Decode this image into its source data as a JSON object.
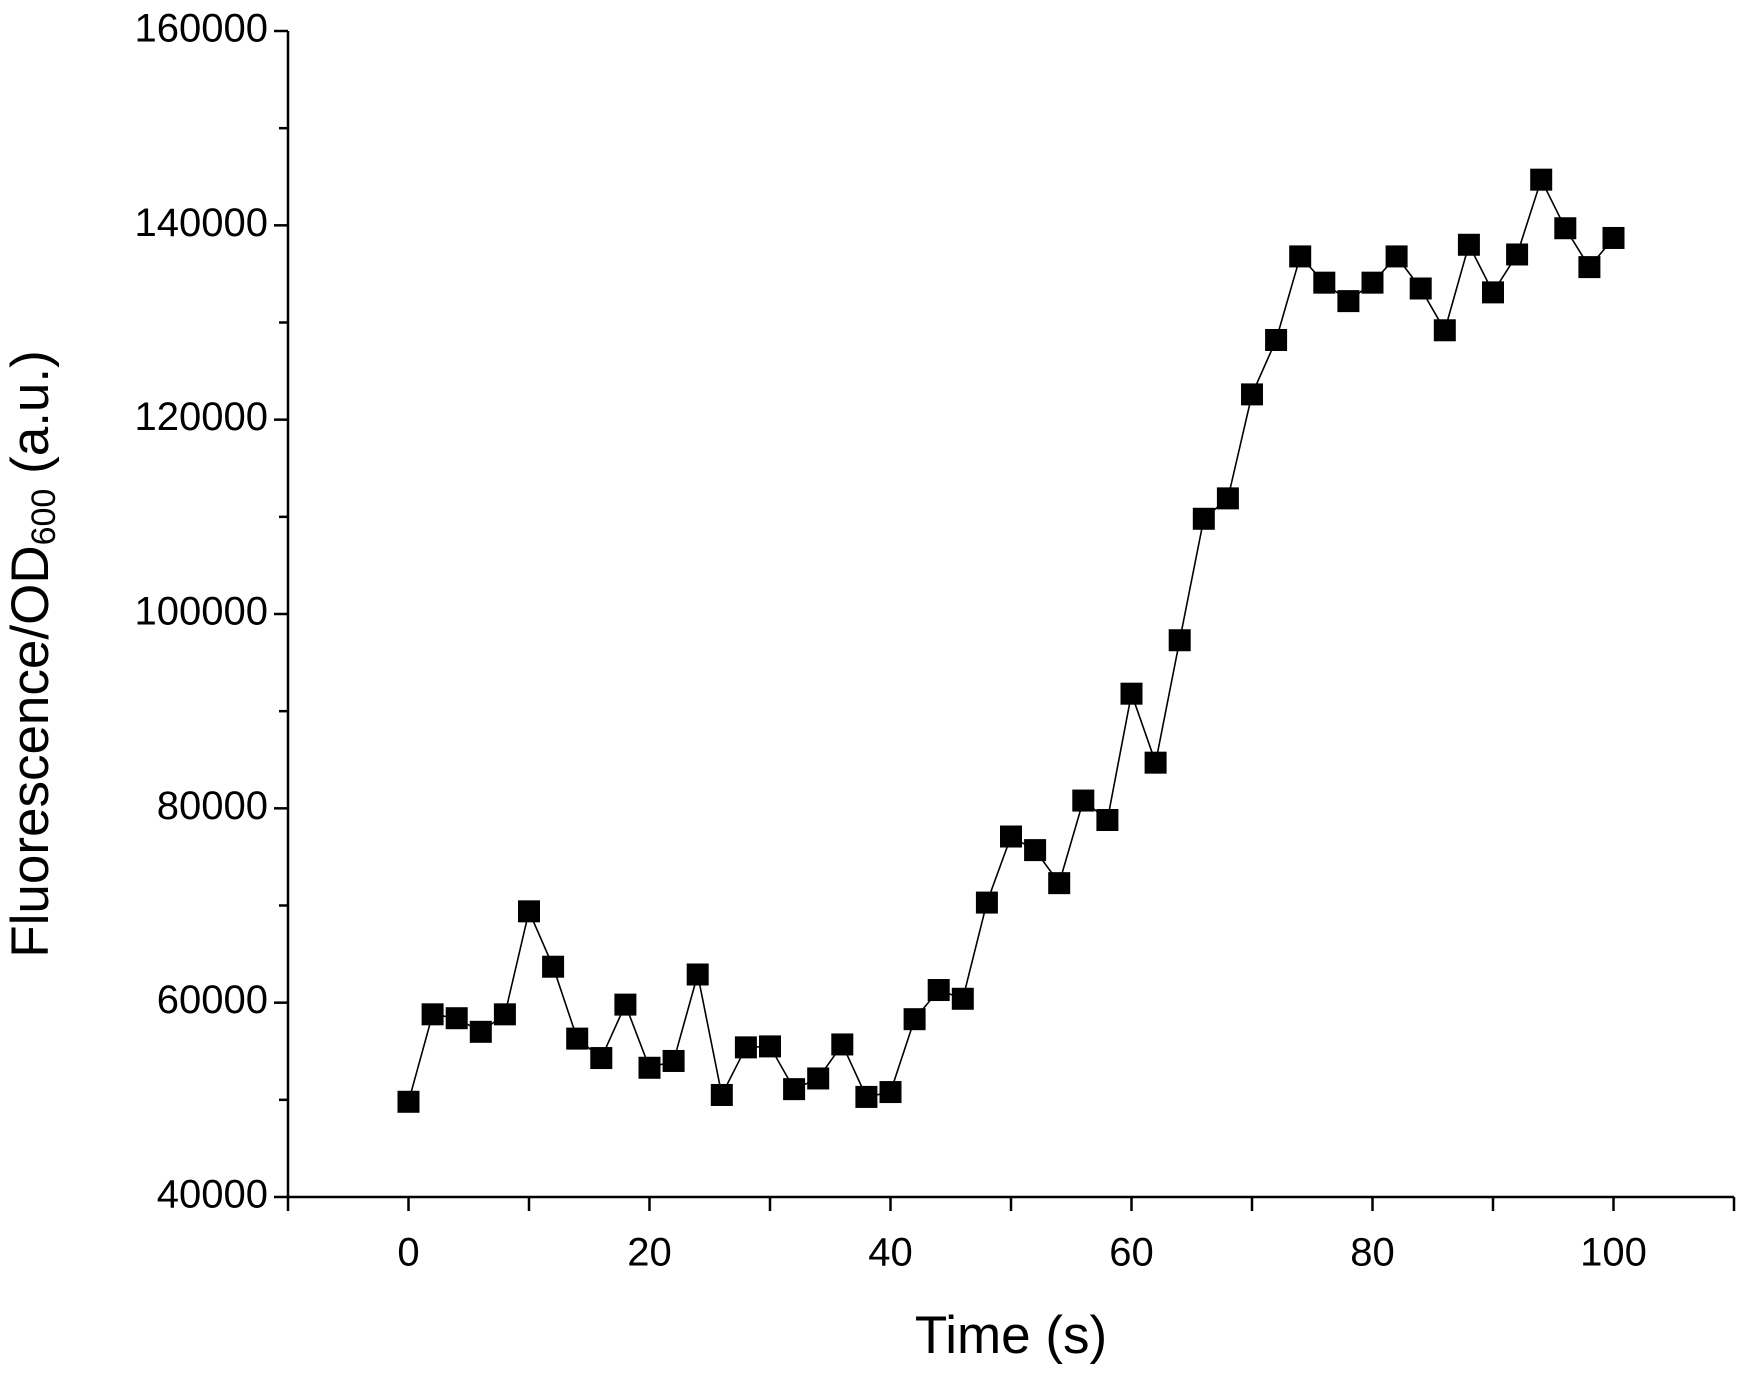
{
  "chart_data": {
    "type": "line",
    "x_label": "Time (s)",
    "y_label": {
      "main": "Fluorescence/OD",
      "subscript": "600",
      "suffix": " (a.u.)"
    },
    "x": [
      0,
      2,
      4,
      6,
      8,
      10,
      12,
      14,
      16,
      18,
      20,
      22,
      24,
      26,
      28,
      30,
      32,
      34,
      36,
      38,
      40,
      42,
      44,
      46,
      48,
      50,
      52,
      54,
      56,
      58,
      60,
      62,
      64,
      66,
      68,
      70,
      72,
      74,
      76,
      78,
      80,
      82,
      84,
      86,
      88,
      90,
      92,
      94,
      96,
      98,
      100
    ],
    "values": [
      49800,
      58800,
      58400,
      57000,
      58800,
      69400,
      63700,
      56300,
      54300,
      59800,
      53300,
      54000,
      62900,
      50500,
      55400,
      55500,
      51100,
      52200,
      55700,
      50300,
      50800,
      58300,
      61300,
      60400,
      70300,
      77100,
      75700,
      72300,
      80800,
      78800,
      91800,
      84700,
      97300,
      109800,
      111900,
      122600,
      128200,
      136800,
      134100,
      132200,
      134100,
      136800,
      133500,
      129200,
      138000,
      133100,
      137000,
      144700,
      139700,
      135700,
      138700
    ],
    "color": "#000000",
    "marker": "square",
    "xlim": [
      -10,
      110
    ],
    "xticks": [
      0,
      20,
      40,
      60,
      80,
      100
    ],
    "xticks_minor": [
      -10,
      10,
      30,
      50,
      70,
      90,
      110
    ],
    "ylim": [
      40000,
      160000
    ],
    "yticks": [
      40000,
      60000,
      80000,
      100000,
      120000,
      140000,
      160000
    ],
    "yticks_minor": [
      50000,
      70000,
      90000,
      110000,
      130000,
      150000
    ]
  }
}
